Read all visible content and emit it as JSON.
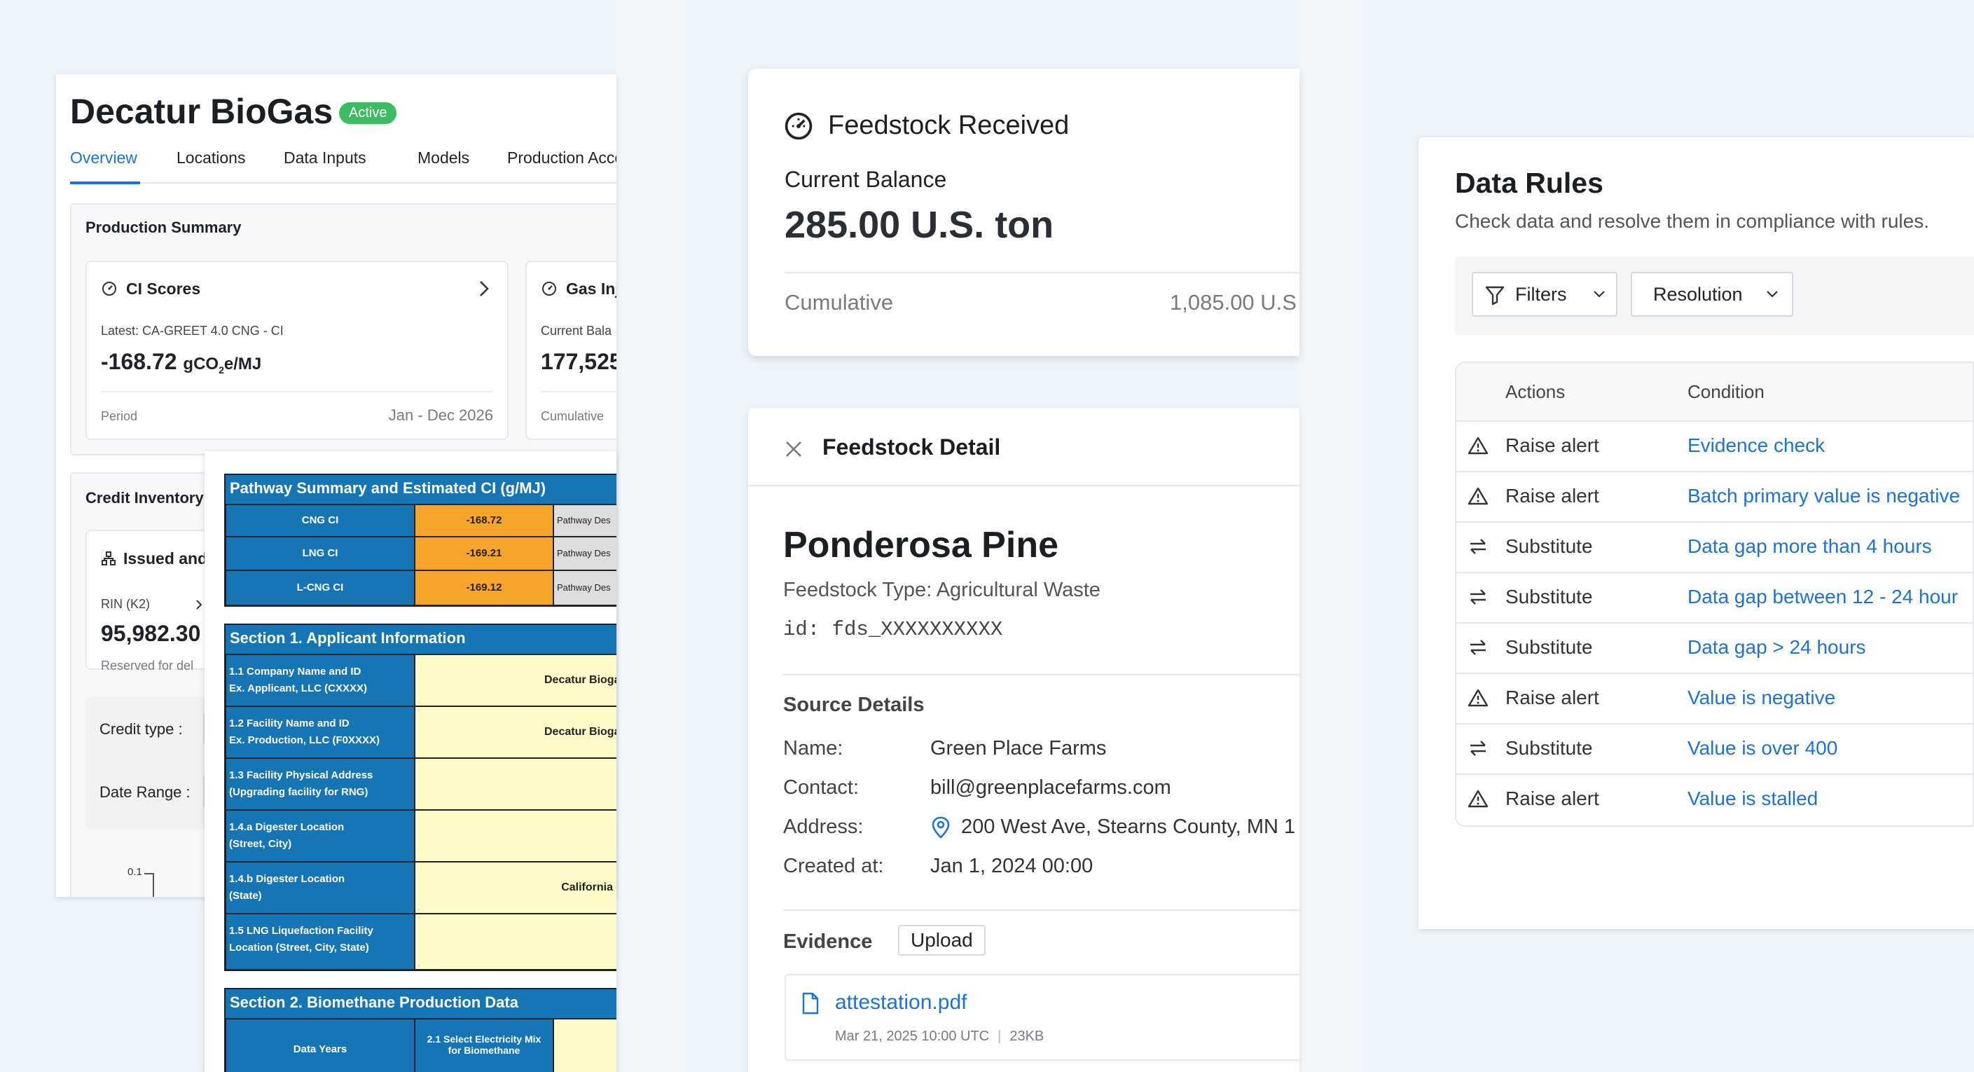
{
  "panel1": {
    "title": "Decatur BioGas",
    "status": "Active",
    "tabs": [
      "Overview",
      "Locations",
      "Data Inputs",
      "Models",
      "Production Acco"
    ],
    "production_summary": {
      "heading": "Production Summary",
      "ci_card": {
        "title": "CI Scores",
        "latest": "Latest: CA-GREET 4.0 CNG - CI",
        "value": "-168.72",
        "unit_prefix": "gCO",
        "unit_sub": "2",
        "unit_suffix": "e/MJ",
        "period_label": "Period",
        "period_value": "Jan - Dec 2026"
      },
      "gas_card": {
        "title": "Gas Inj",
        "balance_label": "Current Bala",
        "value": "177,525",
        "cumulative_label": "Cumulative"
      }
    },
    "credit_inventory": {
      "heading": "Credit Inventory",
      "issued_title": "Issued and",
      "rin_label": "RIN (K2)",
      "rin_value": "95,982.30",
      "reserved": "Reserved for del",
      "credit_type_label": "Credit type :",
      "date_range_label": "Date Range :",
      "axis_tick": "0.1"
    }
  },
  "sheet": {
    "pathway_header": "Pathway Summary and Estimated CI (g/MJ)",
    "pathway_rows": [
      {
        "label": "CNG CI",
        "value": "-168.72",
        "desc": "Pathway Des"
      },
      {
        "label": "LNG CI",
        "value": "-169.21",
        "desc": "Pathway Des"
      },
      {
        "label": "L-CNG CI",
        "value": "-169.12",
        "desc": "Pathway Des"
      }
    ],
    "section1_header": "Section  1. Applicant Information",
    "section1_rows": [
      {
        "l1": "1.1  Company Name and ID",
        "l2": "Ex. Applicant, LLC (CXXXX)",
        "value": "Decatur Bioga"
      },
      {
        "l1": "1.2  Facility Name and ID",
        "l2": "Ex. Production, LLC (F0XXXX)",
        "value": "Decatur Bioga"
      },
      {
        "l1": "1.3  Facility Physical Address",
        "l2": "(Upgrading facility for RNG)",
        "value": ""
      },
      {
        "l1": "1.4.a  Digester Location",
        "l2": "(Street, City)",
        "value": ""
      },
      {
        "l1": "1.4.b  Digester Location",
        "l2": "(State)",
        "value": "California"
      },
      {
        "l1": "1.5  LNG Liquefaction Facility",
        "l2": "Location (Street, City, State)",
        "value": ""
      }
    ],
    "section2_header": "Section 2. Biomethane Production Data",
    "section2_col1": "Data Years",
    "section2_col2a": "2.1  Select Electricity Mix",
    "section2_col2b": "for Biomethane"
  },
  "feedstock_received": {
    "title": "Feedstock Received",
    "balance_label": "Current Balance",
    "balance_value": "285.00 U.S. ton",
    "cumulative_label": "Cumulative",
    "cumulative_value": "1,085.00 U.S"
  },
  "feedstock_detail": {
    "header": "Feedstock Detail",
    "name": "Ponderosa Pine",
    "type": "Feedstock Type: Agricultural Waste",
    "id": "id: fds_XXXXXXXXXX",
    "source_heading": "Source Details",
    "fields": [
      {
        "label": "Name:",
        "value": "Green Place Farms"
      },
      {
        "label": "Contact:",
        "value": "bill@greenplacefarms.com"
      },
      {
        "label": "Address:",
        "value": "200 West Ave, Stearns County, MN 1"
      },
      {
        "label": "Created at:",
        "value": "Jan 1, 2024 00:00"
      }
    ],
    "evidence_heading": "Evidence",
    "upload_label": "Upload",
    "file_name": "attestation.pdf",
    "file_date": "Mar 21, 2025 10:00 UTC",
    "file_size": "23KB"
  },
  "data_rules": {
    "title": "Data Rules",
    "subtitle": "Check data and resolve them in compliance with rules.",
    "filters_label": "Filters",
    "resolution_label": "Resolution",
    "col_actions": "Actions",
    "col_condition": "Condition",
    "rows": [
      {
        "icon": "warning-icon",
        "action": "Raise alert",
        "condition": "Evidence check"
      },
      {
        "icon": "warning-icon",
        "action": "Raise alert",
        "condition": "Batch primary value is negative"
      },
      {
        "icon": "swap-icon",
        "action": "Substitute",
        "condition": "Data gap more than 4 hours"
      },
      {
        "icon": "swap-icon",
        "action": "Substitute",
        "condition": "Data gap between 12 - 24 hour"
      },
      {
        "icon": "swap-icon",
        "action": "Substitute",
        "condition": "Data gap > 24 hours"
      },
      {
        "icon": "warning-icon",
        "action": "Raise alert",
        "condition": "Value is negative"
      },
      {
        "icon": "swap-icon",
        "action": "Substitute",
        "condition": "Value is over 400"
      },
      {
        "icon": "warning-icon",
        "action": "Raise alert",
        "condition": "Value is stalled"
      }
    ]
  },
  "colors": {
    "accent": "#1a73d9",
    "active_badge": "#3dbb63",
    "sheet_blue": "#1675b5",
    "sheet_orange": "#f6a52a",
    "sheet_yellow": "#fefbc8"
  }
}
